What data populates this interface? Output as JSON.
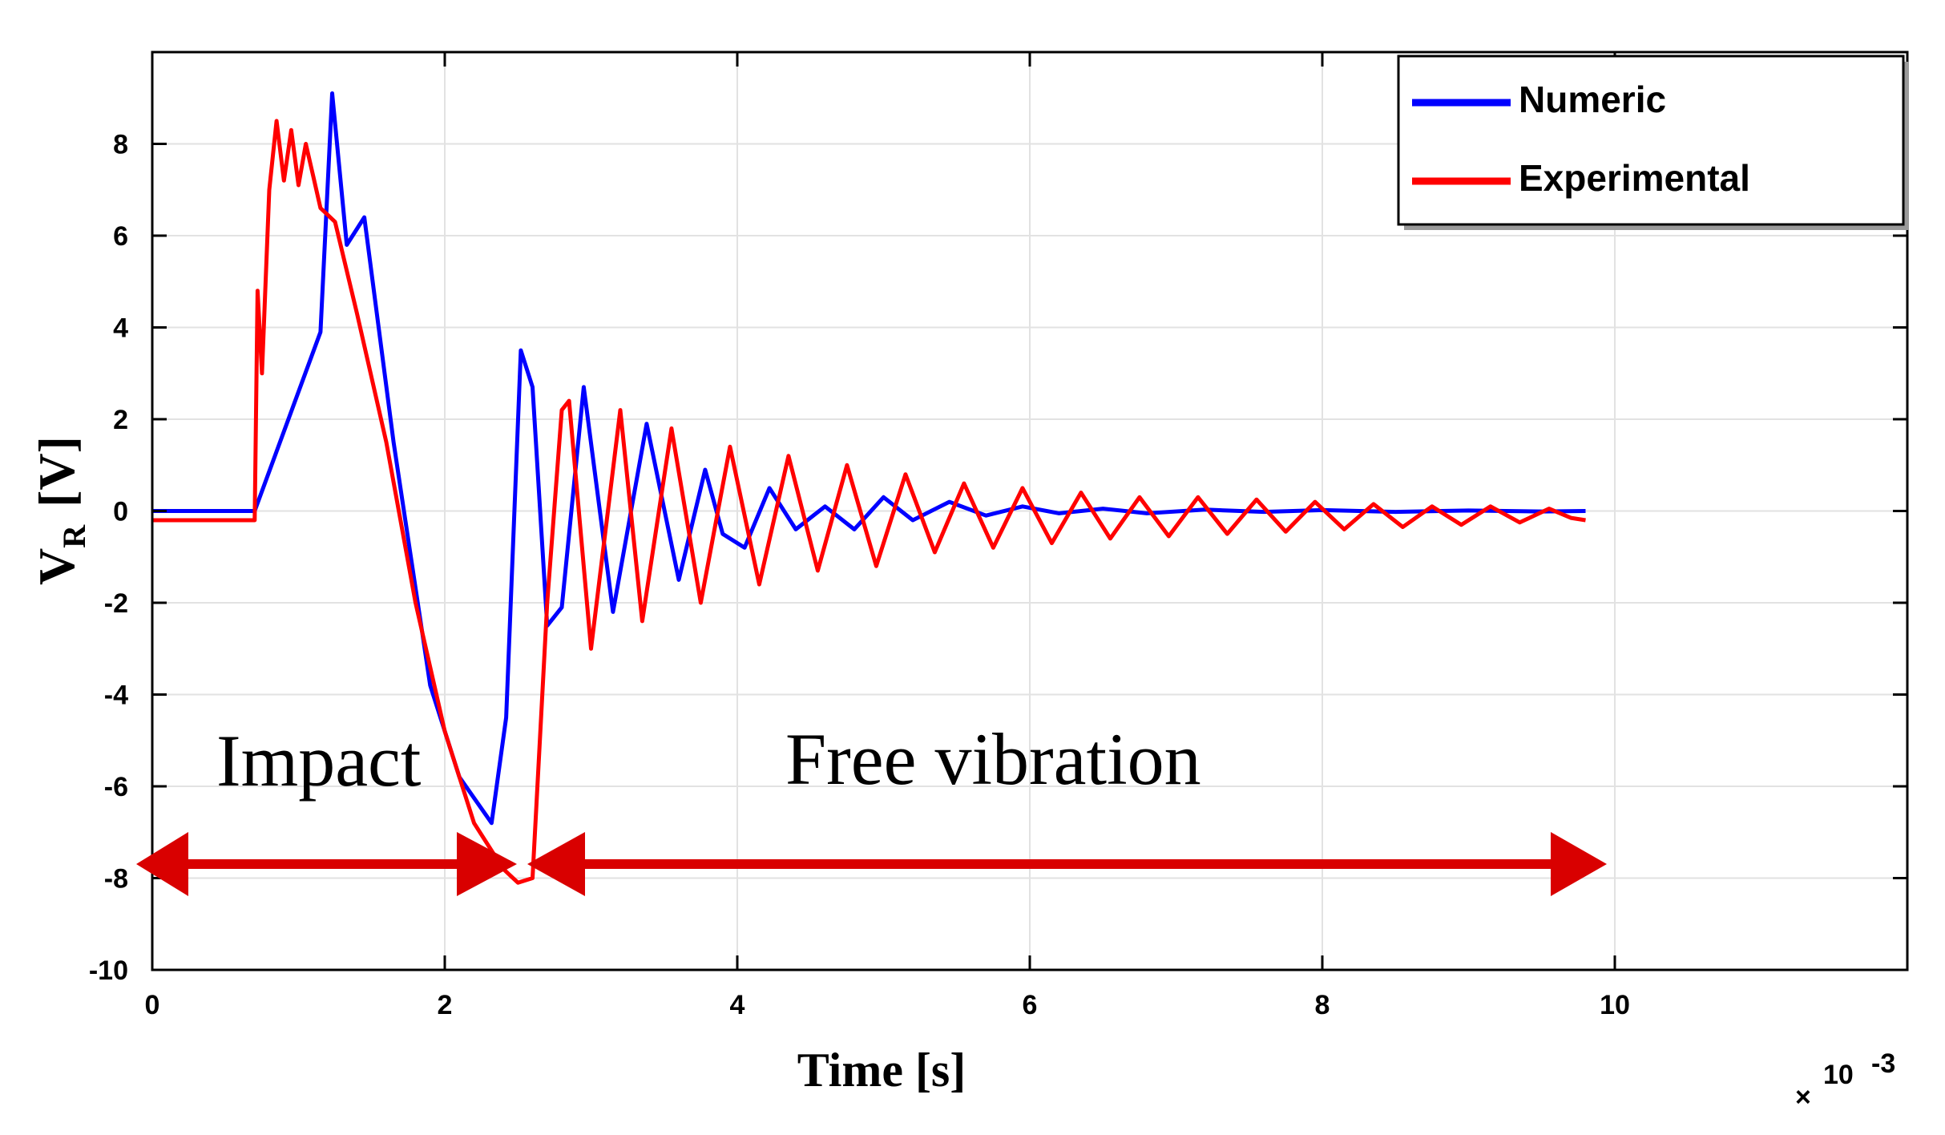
{
  "chart_data": {
    "type": "line",
    "xlabel": "Time [s]",
    "ylabel_main": "V",
    "ylabel_sub": "R",
    "ylabel_unit": "[V]",
    "x_multiplier_prefix": "×",
    "x_multiplier_base": "10",
    "x_multiplier_exp": "-3",
    "xlim": [
      0,
      12
    ],
    "ylim": [
      -10,
      10
    ],
    "x_ticks": [
      0,
      2,
      4,
      6,
      8,
      10
    ],
    "x_tick_labels": [
      "0",
      "2",
      "4",
      "6",
      "8",
      "10"
    ],
    "y_ticks": [
      -10,
      -8,
      -6,
      -4,
      -2,
      0,
      2,
      4,
      6,
      8
    ],
    "y_tick_labels": [
      "-10",
      "-8",
      "-6",
      "-4",
      "-2",
      "0",
      "2",
      "4",
      "6",
      "8"
    ],
    "grid": true,
    "legend_position": "top-right",
    "series": [
      {
        "name": "Numeric",
        "color": "#0000ff",
        "x": [
          0,
          0.3,
          0.7,
          1.15,
          1.23,
          1.33,
          1.45,
          1.65,
          1.9,
          2.1,
          2.32,
          2.42,
          2.52,
          2.6,
          2.7,
          2.8,
          2.95,
          3.15,
          3.38,
          3.6,
          3.78,
          3.9,
          4.05,
          4.22,
          4.4,
          4.6,
          4.8,
          5.0,
          5.2,
          5.45,
          5.7,
          5.95,
          6.2,
          6.5,
          6.8,
          7.2,
          7.6,
          8.0,
          8.5,
          9.0,
          9.5,
          9.8
        ],
        "y": [
          0,
          0,
          0,
          3.9,
          9.1,
          5.8,
          6.4,
          1.5,
          -3.8,
          -5.8,
          -6.8,
          -4.5,
          3.5,
          2.7,
          -2.5,
          -2.1,
          2.7,
          -2.2,
          1.9,
          -1.5,
          0.9,
          -0.5,
          -0.8,
          0.5,
          -0.4,
          0.1,
          -0.4,
          0.3,
          -0.2,
          0.2,
          -0.1,
          0.1,
          -0.05,
          0.05,
          -0.05,
          0.03,
          -0.02,
          0.02,
          -0.02,
          0.01,
          -0.01,
          0
        ]
      },
      {
        "name": "Experimental",
        "color": "#ff0000",
        "x": [
          0,
          0.5,
          0.7,
          0.72,
          0.75,
          0.8,
          0.85,
          0.9,
          0.95,
          1.0,
          1.05,
          1.1,
          1.15,
          1.25,
          1.4,
          1.6,
          1.8,
          2.0,
          2.2,
          2.4,
          2.5,
          2.6,
          2.7,
          2.8,
          2.85,
          3.0,
          3.2,
          3.35,
          3.55,
          3.75,
          3.95,
          4.15,
          4.35,
          4.55,
          4.75,
          4.95,
          5.15,
          5.35,
          5.55,
          5.75,
          5.95,
          6.15,
          6.35,
          6.55,
          6.75,
          6.95,
          7.15,
          7.35,
          7.55,
          7.75,
          7.95,
          8.15,
          8.35,
          8.55,
          8.75,
          8.95,
          9.15,
          9.35,
          9.55,
          9.7,
          9.8
        ],
        "y": [
          -0.2,
          -0.2,
          -0.2,
          4.8,
          3.0,
          7.0,
          8.5,
          7.2,
          8.3,
          7.1,
          8.0,
          7.3,
          6.6,
          6.3,
          4.3,
          1.5,
          -2.0,
          -4.8,
          -6.8,
          -7.8,
          -8.1,
          -8.0,
          -2.0,
          2.2,
          2.4,
          -3.0,
          2.2,
          -2.4,
          1.8,
          -2.0,
          1.4,
          -1.6,
          1.2,
          -1.3,
          1.0,
          -1.2,
          0.8,
          -0.9,
          0.6,
          -0.8,
          0.5,
          -0.7,
          0.4,
          -0.6,
          0.3,
          -0.55,
          0.3,
          -0.5,
          0.25,
          -0.45,
          0.2,
          -0.4,
          0.15,
          -0.35,
          0.1,
          -0.3,
          0.1,
          -0.25,
          0.05,
          -0.15,
          -0.2
        ]
      }
    ],
    "annotations": [
      "Impact",
      "Free vibration"
    ]
  }
}
